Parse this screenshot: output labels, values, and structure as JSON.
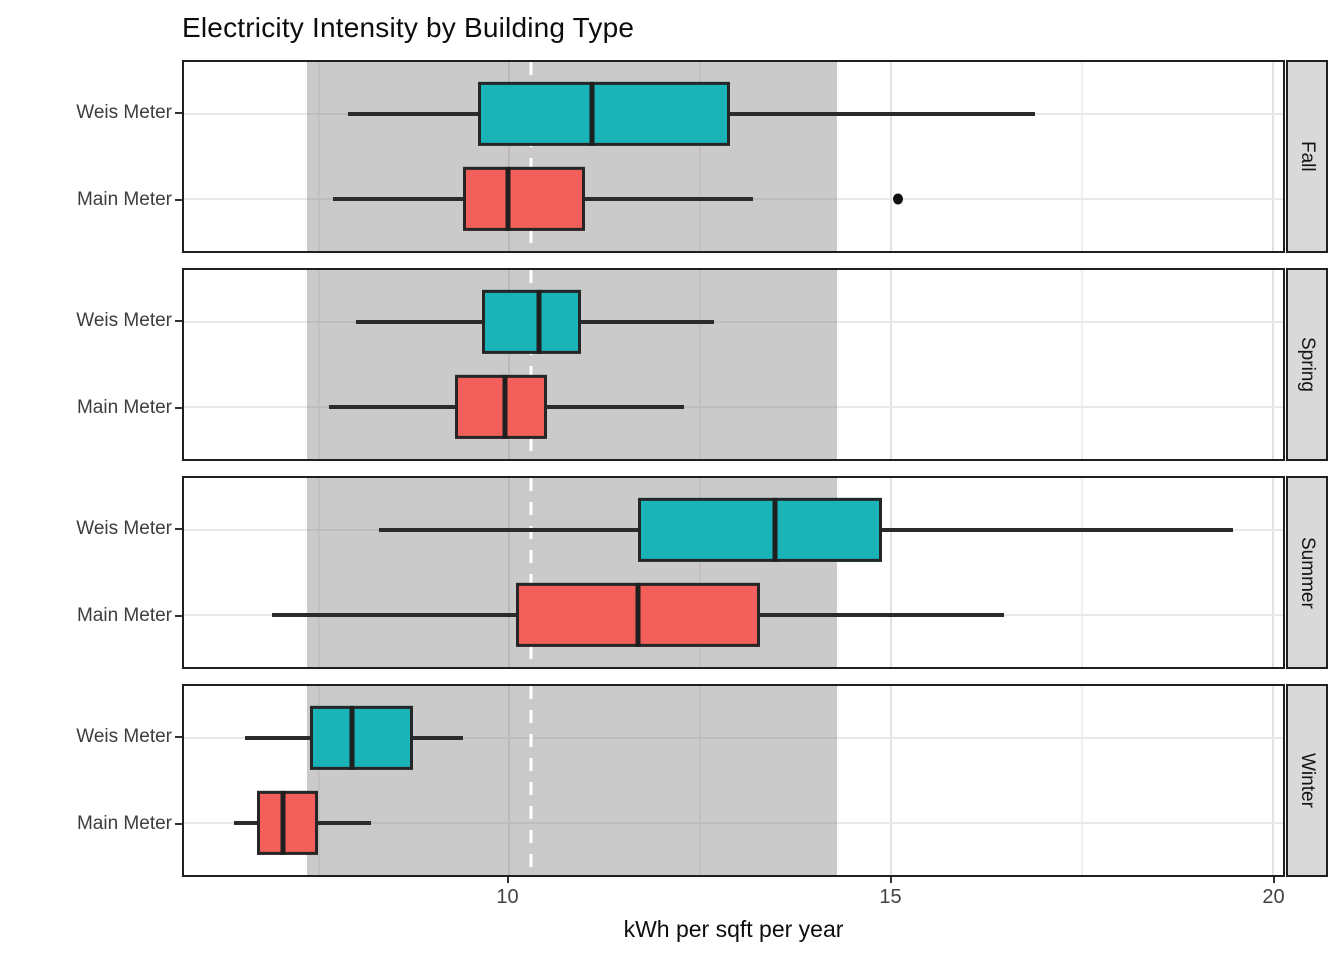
{
  "title": "Electricity Intensity by Building Type",
  "x_axis": {
    "label": "kWh per sqft per year",
    "ticks": [
      10,
      15,
      20
    ],
    "minor_ticks": [
      7.5,
      12.5,
      17.5
    ],
    "range": [
      5.75,
      20.15
    ]
  },
  "y_axis": {
    "categories": [
      "Weis Meter",
      "Main Meter"
    ]
  },
  "colors": {
    "weis": "#1AB3B8",
    "main": "#F3605B",
    "band": "#C9C9C9",
    "dashed_line": "#FFFFFF",
    "strip_bg": "#D9D9D9",
    "box_border": "#262626"
  },
  "annotations": {
    "band": {
      "from": 7.36,
      "to": 14.31
    },
    "dashed_line_x": 10.3
  },
  "chart_data": {
    "type": "boxplot",
    "orientation": "horizontal",
    "title": "Electricity Intensity by Building Type",
    "xlabel": "kWh per sqft per year",
    "xlim": [
      5.75,
      20.15
    ],
    "facets": [
      {
        "label": "Fall",
        "rows": [
          {
            "category": "Weis Meter",
            "series": "weis",
            "min": 7.9,
            "q1": 9.6,
            "median": 11.1,
            "q3": 12.9,
            "max": 16.9,
            "outliers": []
          },
          {
            "category": "Main Meter",
            "series": "main",
            "min": 7.7,
            "q1": 9.4,
            "median": 10.0,
            "q3": 11.0,
            "max": 13.2,
            "outliers": [
              15.1
            ]
          }
        ]
      },
      {
        "label": "Spring",
        "rows": [
          {
            "category": "Weis Meter",
            "series": "weis",
            "min": 8.0,
            "q1": 9.65,
            "median": 10.4,
            "q3": 10.95,
            "max": 12.7,
            "outliers": []
          },
          {
            "category": "Main Meter",
            "series": "main",
            "min": 7.65,
            "q1": 9.3,
            "median": 9.95,
            "q3": 10.5,
            "max": 12.3,
            "outliers": []
          }
        ]
      },
      {
        "label": "Summer",
        "rows": [
          {
            "category": "Weis Meter",
            "series": "weis",
            "min": 8.3,
            "q1": 11.7,
            "median": 13.5,
            "q3": 14.9,
            "max": 19.5,
            "outliers": []
          },
          {
            "category": "Main Meter",
            "series": "main",
            "min": 6.9,
            "q1": 10.1,
            "median": 11.7,
            "q3": 13.3,
            "max": 16.5,
            "outliers": []
          }
        ]
      },
      {
        "label": "Winter",
        "rows": [
          {
            "category": "Weis Meter",
            "series": "weis",
            "min": 6.55,
            "q1": 7.4,
            "median": 7.95,
            "q3": 8.75,
            "max": 9.4,
            "outliers": []
          },
          {
            "category": "Main Meter",
            "series": "main",
            "min": 6.4,
            "q1": 6.7,
            "median": 7.05,
            "q3": 7.5,
            "max": 8.2,
            "outliers": []
          }
        ]
      }
    ]
  }
}
